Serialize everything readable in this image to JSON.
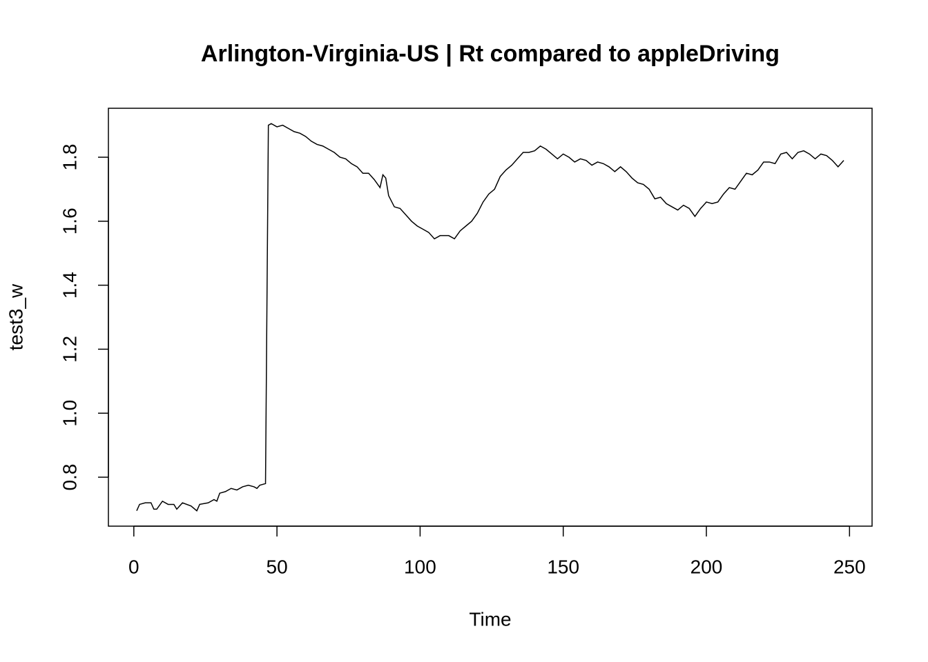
{
  "chart_data": {
    "type": "line",
    "title": "Arlington-Virginia-US | Rt compared to appleDriving",
    "xlabel": "Time",
    "ylabel": "test3_w",
    "xlim": [
      -8.88,
      257.88
    ],
    "ylim": [
      0.647,
      1.953
    ],
    "xticks": [
      0,
      50,
      100,
      150,
      200,
      250
    ],
    "yticks": [
      0.8,
      {
        "value": 1,
        "label": "1.0"
      },
      1.2,
      1.4,
      1.6,
      1.8
    ],
    "series": [
      {
        "color": "#000000",
        "x": [
          1,
          2,
          4,
          6,
          7,
          8,
          10,
          12,
          14,
          15,
          17,
          20,
          22,
          23,
          26,
          28,
          29,
          30,
          32,
          34,
          36,
          38,
          40,
          42,
          43,
          44,
          46,
          47,
          48,
          50,
          52,
          54,
          56,
          58,
          60,
          62,
          64,
          66,
          68,
          70,
          72,
          74,
          76,
          78,
          80,
          82,
          84,
          86,
          87,
          88,
          89,
          91,
          93,
          95,
          97,
          99,
          101,
          103,
          105,
          107,
          110,
          112,
          114,
          116,
          118,
          120,
          122,
          124,
          126,
          128,
          130,
          132,
          134,
          136,
          138,
          140,
          142,
          144,
          146,
          148,
          150,
          152,
          154,
          156,
          158,
          160,
          162,
          164,
          166,
          168,
          170,
          172,
          174,
          176,
          178,
          180,
          182,
          184,
          186,
          188,
          190,
          192,
          194,
          196,
          198,
          200,
          202,
          204,
          206,
          208,
          210,
          212,
          214,
          216,
          218,
          220,
          222,
          224,
          226,
          228,
          230,
          232,
          234,
          236,
          238,
          240,
          242,
          244,
          246,
          248
        ],
        "values": [
          0.695,
          0.715,
          0.72,
          0.72,
          0.7,
          0.7,
          0.725,
          0.715,
          0.715,
          0.7,
          0.72,
          0.71,
          0.695,
          0.715,
          0.72,
          0.73,
          0.725,
          0.75,
          0.755,
          0.765,
          0.76,
          0.77,
          0.775,
          0.77,
          0.765,
          0.775,
          0.78,
          1.9,
          1.905,
          1.895,
          1.9,
          1.89,
          1.88,
          1.875,
          1.865,
          1.85,
          1.84,
          1.835,
          1.825,
          1.815,
          1.8,
          1.795,
          1.78,
          1.77,
          1.75,
          1.75,
          1.73,
          1.705,
          1.745,
          1.735,
          1.68,
          1.645,
          1.64,
          1.62,
          1.6,
          1.585,
          1.575,
          1.565,
          1.545,
          1.555,
          1.555,
          1.545,
          1.57,
          1.585,
          1.6,
          1.625,
          1.66,
          1.685,
          1.7,
          1.74,
          1.76,
          1.775,
          1.795,
          1.815,
          1.815,
          1.82,
          1.835,
          1.825,
          1.81,
          1.795,
          1.81,
          1.8,
          1.785,
          1.795,
          1.79,
          1.775,
          1.785,
          1.78,
          1.77,
          1.755,
          1.77,
          1.755,
          1.735,
          1.72,
          1.715,
          1.7,
          1.67,
          1.675,
          1.655,
          1.645,
          1.635,
          1.65,
          1.64,
          1.615,
          1.64,
          1.66,
          1.655,
          1.66,
          1.685,
          1.705,
          1.7,
          1.725,
          1.75,
          1.745,
          1.76,
          1.785,
          1.785,
          1.78,
          1.81,
          1.815,
          1.795,
          1.815,
          1.82,
          1.81,
          1.795,
          1.81,
          1.805,
          1.79,
          1.77,
          1.79
        ]
      }
    ]
  }
}
